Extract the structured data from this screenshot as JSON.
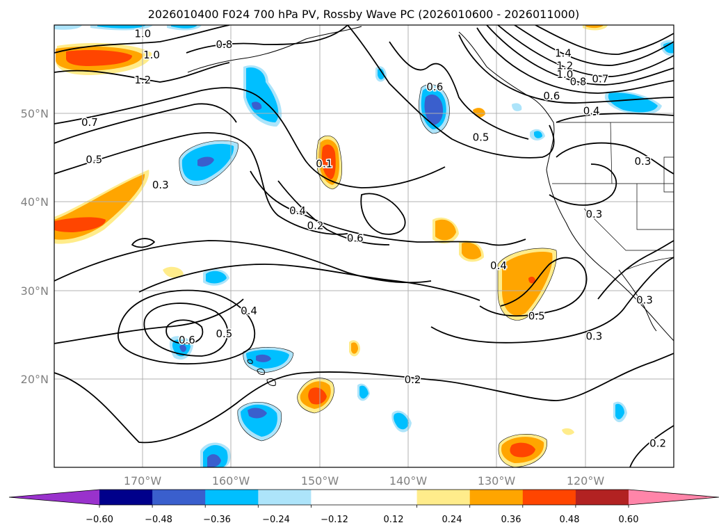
{
  "chart_data": {
    "type": "contour_map",
    "title": "2026010400 F024 700 hPa PV, Rossby Wave PC (2026010600 - 2026011000)",
    "lat_range": [
      10,
      60
    ],
    "lon_range": [
      -180,
      -110
    ],
    "lat_ticks": [
      {
        "value": 50,
        "label": "50°N"
      },
      {
        "value": 40,
        "label": "40°N"
      },
      {
        "value": 30,
        "label": "30°N"
      },
      {
        "value": 20,
        "label": "20°N"
      }
    ],
    "lon_ticks": [
      {
        "value": -170,
        "label": "170°W"
      },
      {
        "value": -160,
        "label": "160°W"
      },
      {
        "value": -150,
        "label": "150°W"
      },
      {
        "value": -140,
        "label": "140°W"
      },
      {
        "value": -130,
        "label": "130°W"
      },
      {
        "value": -120,
        "label": "120°W"
      }
    ],
    "grid": true,
    "colorbar": {
      "orientation": "horizontal",
      "extend": "both",
      "levels": [
        -0.72,
        -0.6,
        -0.48,
        -0.36,
        -0.24,
        -0.12,
        0.12,
        0.24,
        0.36,
        0.48,
        0.6,
        0.72
      ],
      "colors": [
        "#9932cc",
        "#00008b",
        "#3a5fcd",
        "#00bfff",
        "#ade4fa",
        "#ffffff",
        "#ffec8b",
        "#ffa500",
        "#ff4500",
        "#b22222",
        "#ff85a9"
      ],
      "extend_colors": {
        "under": "#9932cc",
        "over": "#ff85a9"
      },
      "tick_labels": [
        "−0.60",
        "−0.48",
        "−0.36",
        "−0.24",
        "−0.12",
        "0.12",
        "0.24",
        "0.36",
        "0.48",
        "0.60"
      ],
      "tick_values": [
        -0.6,
        -0.48,
        -0.36,
        -0.24,
        -0.12,
        0.12,
        0.24,
        0.36,
        0.48,
        0.6
      ]
    },
    "contour_labels": [
      {
        "text": "1.0",
        "lon": -170.0,
        "lat": 59.0
      },
      {
        "text": "0.8",
        "lon": -160.8,
        "lat": 57.8
      },
      {
        "text": "1.0",
        "lon": -169.0,
        "lat": 56.6
      },
      {
        "text": "1.2",
        "lon": -170.0,
        "lat": 53.8
      },
      {
        "text": "0.7",
        "lon": -176.0,
        "lat": 49.0
      },
      {
        "text": "0.5",
        "lon": -175.5,
        "lat": 44.8
      },
      {
        "text": "0.3",
        "lon": -168.0,
        "lat": 41.9
      },
      {
        "text": "0.4",
        "lon": -152.5,
        "lat": 39.0
      },
      {
        "text": "0.2",
        "lon": -150.5,
        "lat": 37.3
      },
      {
        "text": "0.1",
        "lon": -149.5,
        "lat": 44.3
      },
      {
        "text": "0.6",
        "lon": -137.0,
        "lat": 53.0
      },
      {
        "text": "0.5",
        "lon": -131.8,
        "lat": 47.3
      },
      {
        "text": "0.6",
        "lon": -146.0,
        "lat": 35.9
      },
      {
        "text": "0.4",
        "lon": -129.8,
        "lat": 32.8
      },
      {
        "text": "0.5",
        "lon": -125.5,
        "lat": 27.1
      },
      {
        "text": "0.4",
        "lon": -158.0,
        "lat": 27.7
      },
      {
        "text": "0.6",
        "lon": -165.0,
        "lat": 24.4
      },
      {
        "text": "0.5",
        "lon": -160.8,
        "lat": 25.1
      },
      {
        "text": "0.2",
        "lon": -139.5,
        "lat": 19.9
      },
      {
        "text": "0.3",
        "lon": -119.0,
        "lat": 24.8
      },
      {
        "text": "0.3",
        "lon": -119.0,
        "lat": 38.6
      },
      {
        "text": "0.3",
        "lon": -113.5,
        "lat": 44.6
      },
      {
        "text": "0.3",
        "lon": -113.3,
        "lat": 28.9
      },
      {
        "text": "0.2",
        "lon": -111.8,
        "lat": 12.7
      },
      {
        "text": "1.4",
        "lon": -122.5,
        "lat": 56.8
      },
      {
        "text": "1.2",
        "lon": -122.3,
        "lat": 55.4
      },
      {
        "text": "1.0",
        "lon": -122.3,
        "lat": 54.4
      },
      {
        "text": "0.8",
        "lon": -120.8,
        "lat": 53.6
      },
      {
        "text": "0.7",
        "lon": -118.3,
        "lat": 53.9
      },
      {
        "text": "0.6",
        "lon": -123.8,
        "lat": 52.0
      },
      {
        "text": "0.4",
        "lon": -119.3,
        "lat": 50.3
      }
    ]
  }
}
